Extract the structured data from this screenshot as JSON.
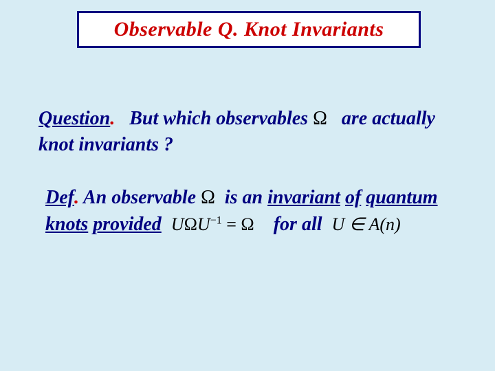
{
  "title": "Observable Q. Knot Invariants",
  "question": {
    "label": "Question",
    "dot": ".",
    "part1": "But which observables",
    "omega": "Ω",
    "part2": "are actually knot invariants ?"
  },
  "def": {
    "label": "Def",
    "dot": ".",
    "part1": "An observable",
    "omega1": "Ω",
    "part2": "is an",
    "invariant": "invariant",
    "of": "of",
    "quantum": "quantum",
    "knots": "knots",
    "provided": "provided",
    "formula_U": "U",
    "formula_omega": "Ω",
    "formula_Uinv_U": "U",
    "formula_Uinv_exp": "−1",
    "formula_eq": "=",
    "formula_rhs": "Ω",
    "for": "for",
    "all": "all",
    "mem_U": "U",
    "mem_in": "∈",
    "mem_A": "A",
    "mem_paren_open": "(",
    "mem_n": "n",
    "mem_paren_close": ")"
  },
  "colors": {
    "background": "#d7ecf4",
    "title_border": "#000080",
    "title_bg": "#ffffff",
    "title_text": "#cc0000",
    "body_text": "#000080",
    "math_text": "#000000"
  }
}
